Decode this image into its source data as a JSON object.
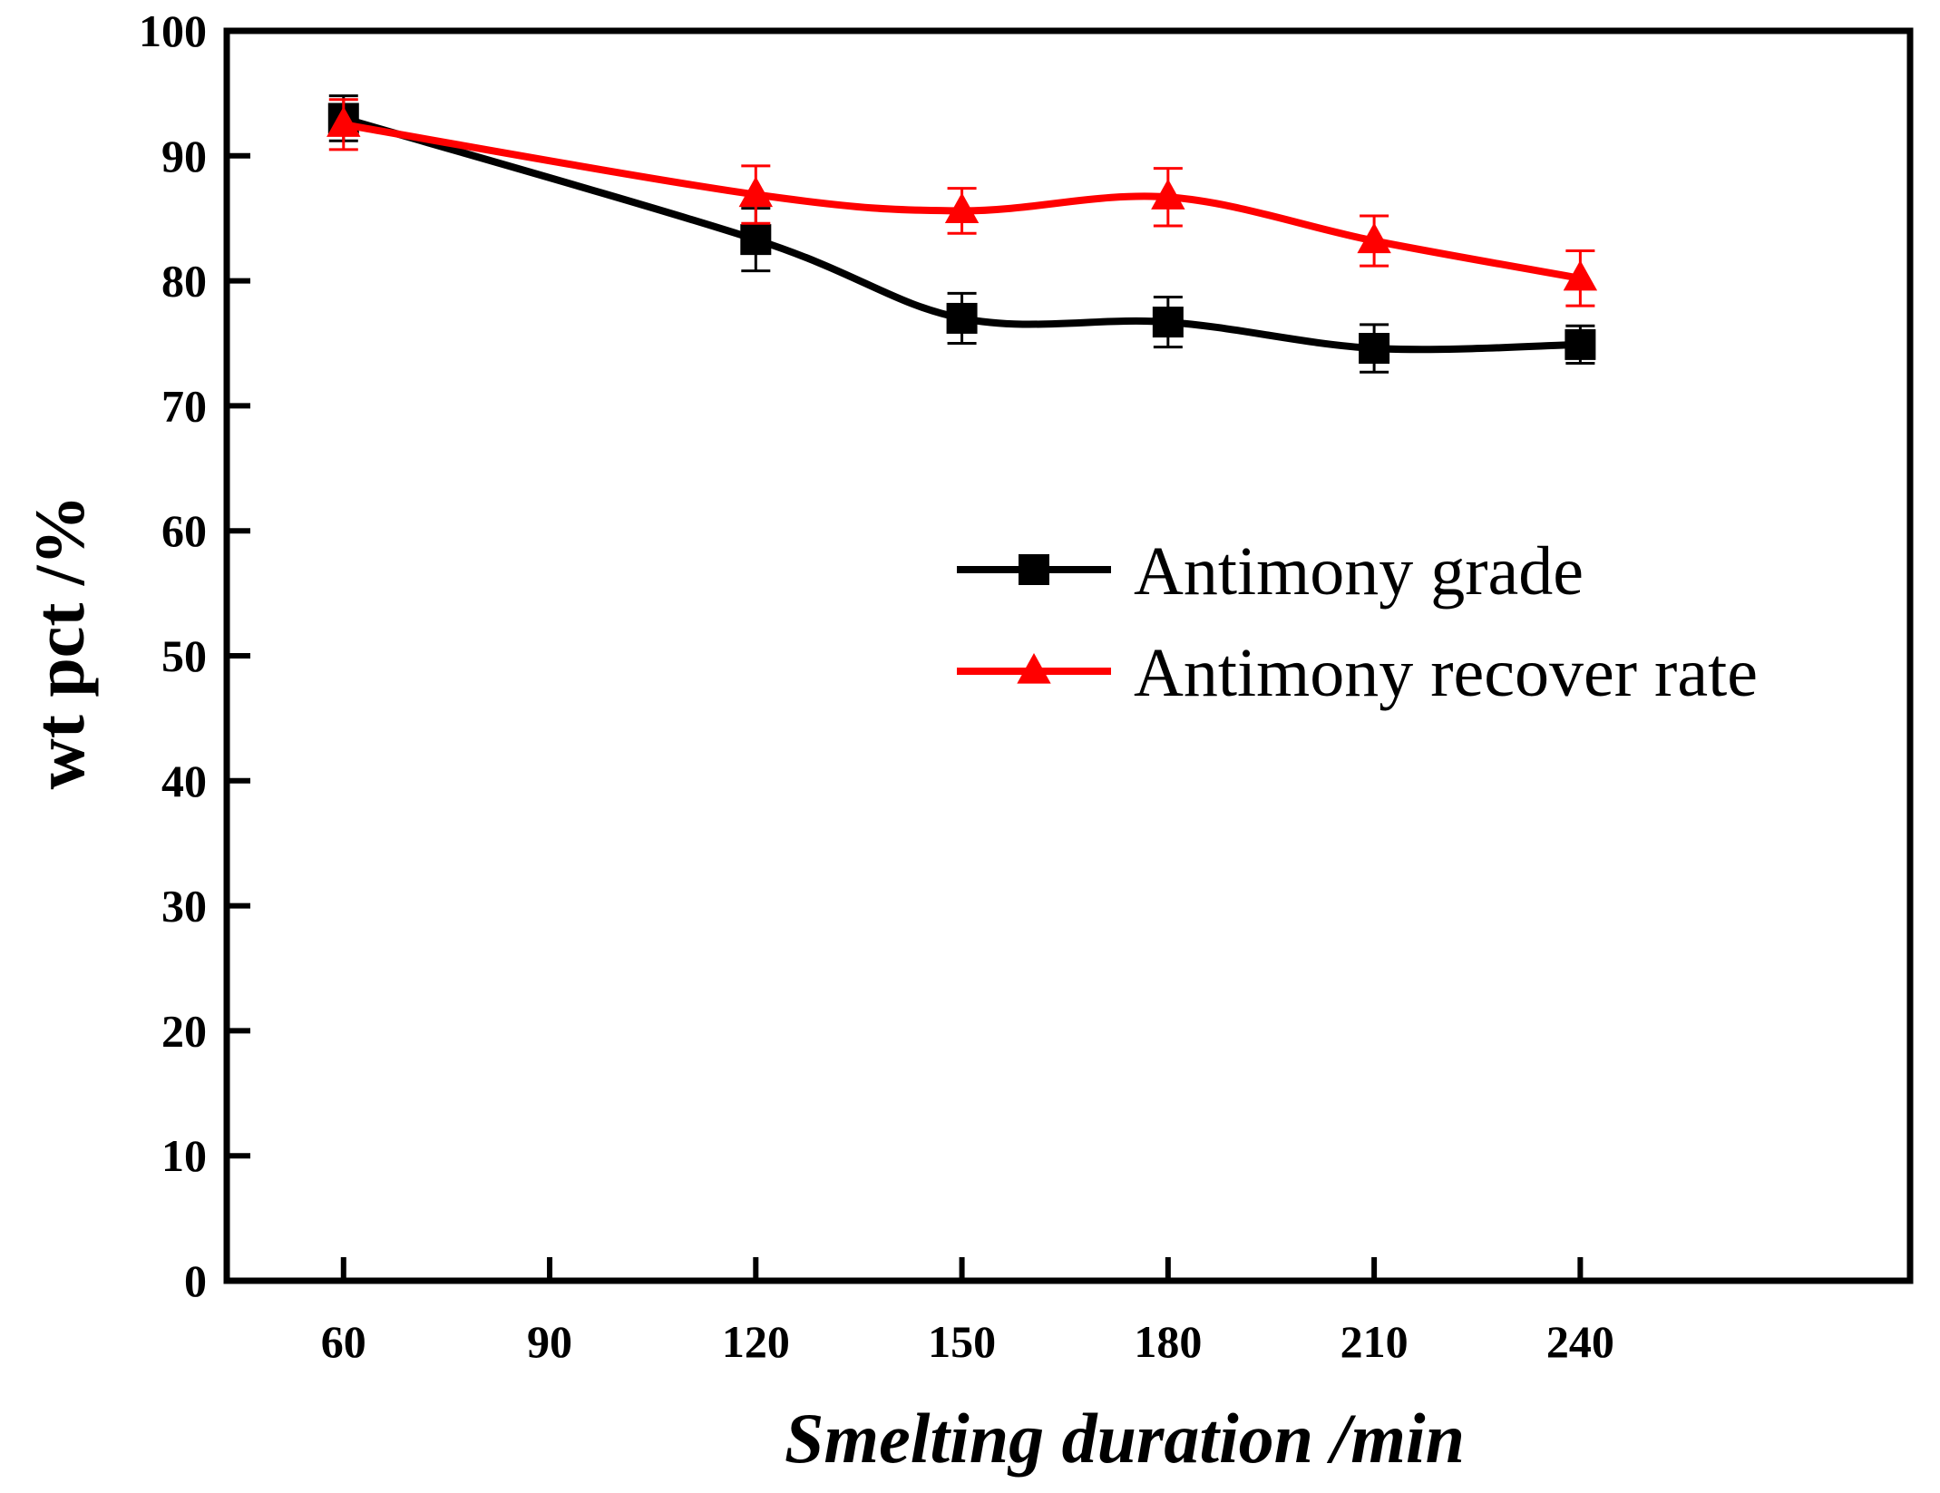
{
  "chart_data": {
    "type": "line",
    "title": "",
    "xlabel": "Smelting duration /min",
    "ylabel": "wt pct /%",
    "xlim": [
      43,
      288
    ],
    "ylim": [
      0,
      100
    ],
    "x_ticks": [
      60,
      90,
      120,
      150,
      180,
      210,
      240
    ],
    "y_ticks": [
      0,
      10,
      20,
      30,
      40,
      50,
      60,
      70,
      80,
      90,
      100
    ],
    "grid": false,
    "legend_position": "center-right",
    "series": [
      {
        "name": "Antimony grade",
        "color": "#000000",
        "marker": "square",
        "x": [
          60,
          120,
          150,
          180,
          210,
          240
        ],
        "values": [
          93.0,
          83.3,
          77.0,
          76.7,
          74.6,
          74.9
        ],
        "errors": [
          1.8,
          2.5,
          2.0,
          2.0,
          1.9,
          1.5
        ]
      },
      {
        "name": "Antimony recover rate",
        "color": "#ff0000",
        "marker": "triangle",
        "x": [
          60,
          120,
          150,
          180,
          210,
          240
        ],
        "values": [
          92.5,
          86.9,
          85.6,
          86.7,
          83.2,
          80.2
        ],
        "errors": [
          2.0,
          2.3,
          1.8,
          2.3,
          2.0,
          2.2
        ]
      }
    ]
  }
}
